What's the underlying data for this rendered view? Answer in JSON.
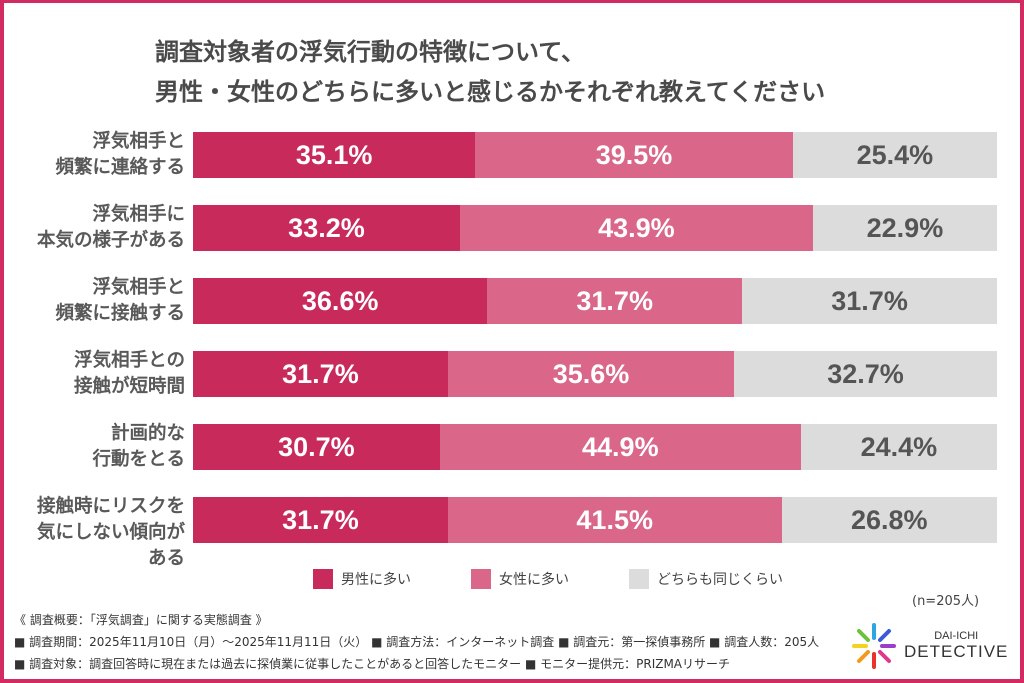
{
  "chart_data": {
    "type": "bar",
    "stacked": true,
    "orientation": "horizontal",
    "title": [
      "調査対象者の浮気行動の特徴について、",
      "男性・女性のどちらに多いと感じるかそれぞれ教えてください"
    ],
    "categories": [
      [
        "浮気相手と",
        "頻繁に連絡する"
      ],
      [
        "浮気相手に",
        "本気の様子がある"
      ],
      [
        "浮気相手と",
        "頻繁に接触する"
      ],
      [
        "浮気相手との",
        "接触が短時間"
      ],
      [
        "計画的な",
        "行動をとる"
      ],
      [
        "接触時にリスクを",
        "気にしない傾向がある"
      ]
    ],
    "series": [
      {
        "name": "男性に多い",
        "color": "#c92a5c",
        "values": [
          35.1,
          33.2,
          36.6,
          31.7,
          30.7,
          31.7
        ]
      },
      {
        "name": "女性に多い",
        "color": "#da6689",
        "values": [
          39.5,
          43.9,
          31.7,
          35.6,
          44.9,
          41.5
        ]
      },
      {
        "name": "どちらも同じくらい",
        "color": "#dcdcdc",
        "values": [
          25.4,
          22.9,
          31.7,
          32.7,
          24.4,
          26.8
        ]
      }
    ],
    "unit": "%",
    "xlim": [
      0,
      100
    ],
    "legend": "bottom"
  },
  "n": "(n=205人)",
  "footer": [
    "《 調査概要：「浮気調査」に関する実態調査 》",
    "■ 調査期間：2025年11月10日（月）～2025年11月11日（火） ■ 調査方法：インターネット調査 ■ 調査元：第一探偵事務所 ■ 調査人数：205人",
    "■ 調査対象：調査回答時に現在または過去に探偵業に従事したことがあると回答したモニター ■ モニター提供元：PRIZMAリサーチ"
  ],
  "logo": {
    "line1": "DAI-ICHI",
    "line2": "DETECTIVE"
  },
  "frame_color": "#d22b62"
}
